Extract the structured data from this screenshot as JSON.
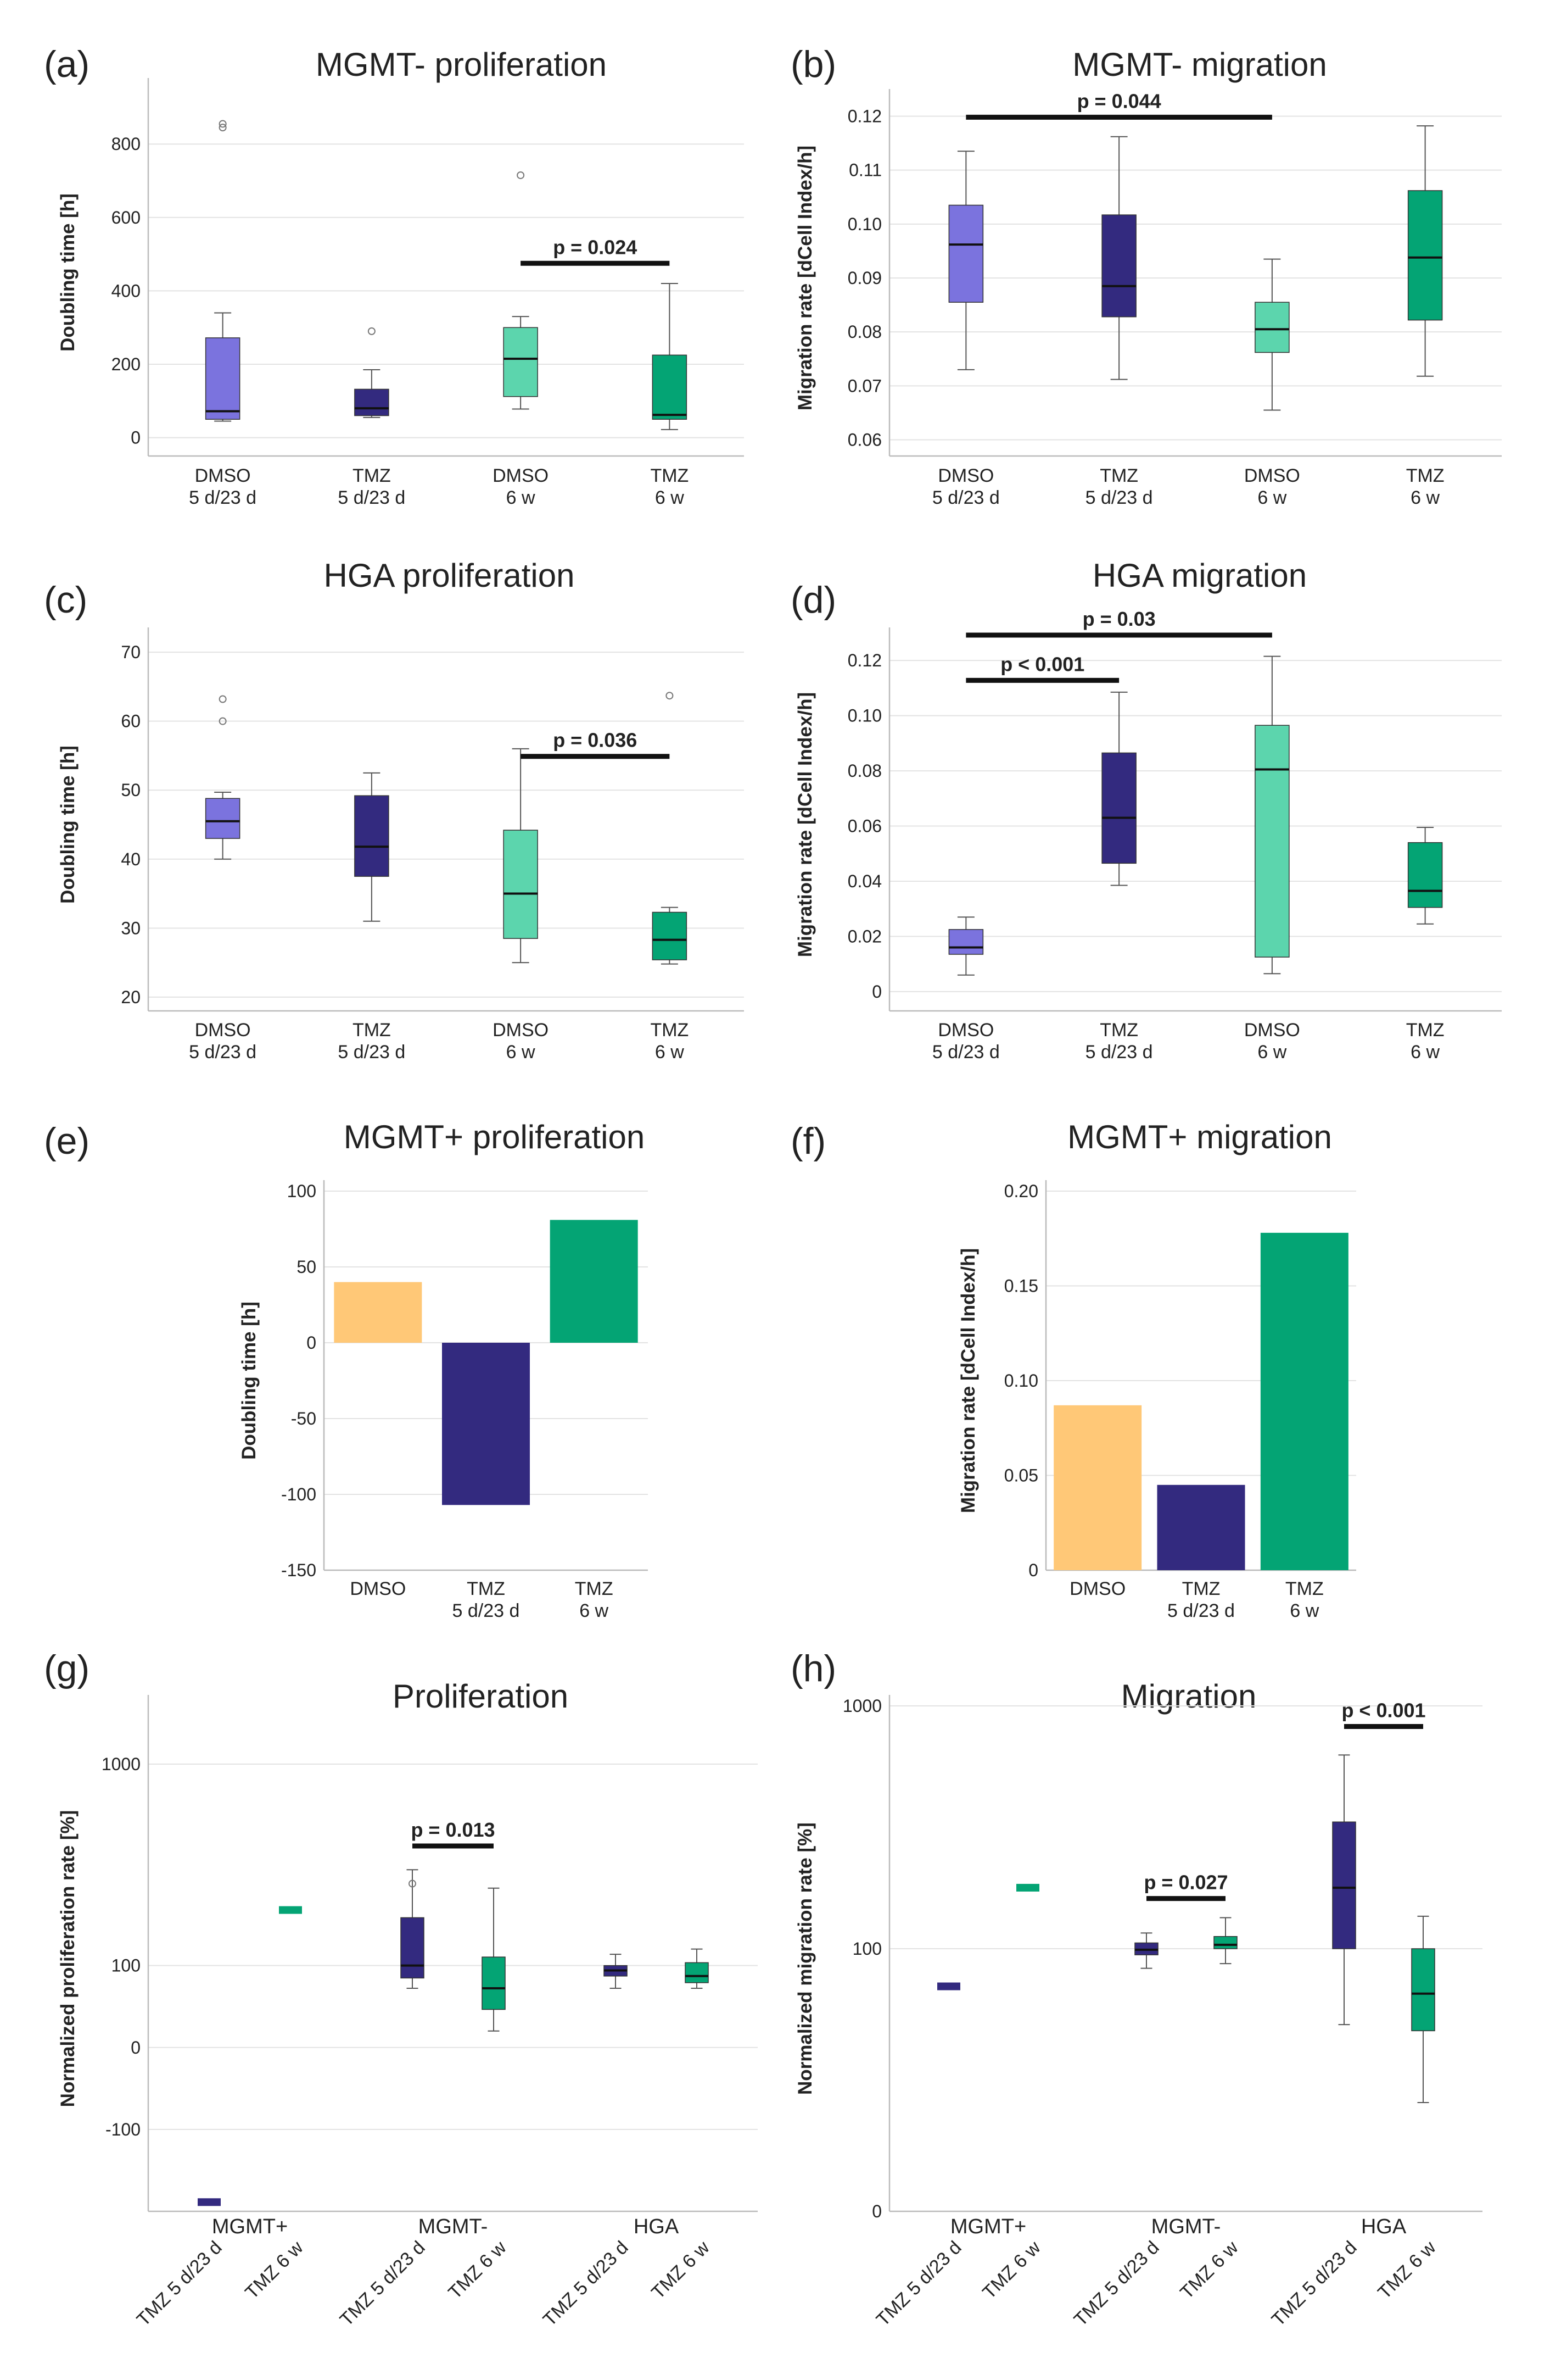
{
  "colors": {
    "dmso_short": "#7b73de",
    "tmz_short": "#332a7f",
    "dmso_long": "#5cd5ad",
    "tmz_long": "#04a474",
    "dmso_plus": "#ffc877",
    "axis": "#bbbbbb",
    "grid": "#e3e3e3",
    "whisker": "#555555"
  },
  "chart_data": [
    {
      "panel": "(a)",
      "type": "box",
      "title": "MGMT- proliferation",
      "ylabel": "Doubling time [h]",
      "ylim": [
        -50,
        950
      ],
      "yticks": [
        0,
        200,
        400,
        600,
        800
      ],
      "categories": [
        "DMSO\n5 d/23 d",
        "TMZ\n5 d/23 d",
        "DMSO\n6 w",
        "TMZ\n6 w"
      ],
      "colorKeys": [
        "dmso_short",
        "tmz_short",
        "dmso_long",
        "tmz_long"
      ],
      "boxes": [
        {
          "min": 45,
          "q1": 50,
          "median": 72,
          "q3": 272,
          "max": 340,
          "outliers": [
            845,
            855
          ]
        },
        {
          "min": 55,
          "q1": 60,
          "median": 80,
          "q3": 132,
          "max": 185,
          "outliers": [
            290
          ]
        },
        {
          "min": 78,
          "q1": 112,
          "median": 215,
          "q3": 300,
          "max": 330,
          "outliers": [
            715
          ]
        },
        {
          "min": 22,
          "q1": 50,
          "median": 62,
          "q3": 225,
          "max": 420,
          "outliers": []
        }
      ],
      "significance": [
        {
          "from": 2,
          "to": 3,
          "y": 475,
          "label": "p = 0.024"
        }
      ]
    },
    {
      "panel": "(b)",
      "type": "box",
      "title": "MGMT- migration",
      "ylabel": "Migration rate [dCell Index/h]",
      "ylim": [
        0.057,
        0.123
      ],
      "yticks": [
        0.06,
        0.07,
        0.08,
        0.09,
        0.1,
        0.11,
        0.12
      ],
      "categories": [
        "DMSO\n5 d/23 d",
        "TMZ\n5 d/23 d",
        "DMSO\n6 w",
        "TMZ\n6 w"
      ],
      "colorKeys": [
        "dmso_short",
        "tmz_short",
        "dmso_long",
        "tmz_long"
      ],
      "boxes": [
        {
          "min": 0.073,
          "q1": 0.0855,
          "median": 0.0962,
          "q3": 0.1035,
          "max": 0.1135,
          "outliers": []
        },
        {
          "min": 0.0712,
          "q1": 0.0828,
          "median": 0.0885,
          "q3": 0.1017,
          "max": 0.1162,
          "outliers": []
        },
        {
          "min": 0.0655,
          "q1": 0.0762,
          "median": 0.0805,
          "q3": 0.0855,
          "max": 0.0935,
          "outliers": []
        },
        {
          "min": 0.0718,
          "q1": 0.0822,
          "median": 0.0938,
          "q3": 0.1062,
          "max": 0.1182,
          "outliers": []
        }
      ],
      "significance": [
        {
          "from": 0,
          "to": 2,
          "y": 0.1198,
          "label": "p = 0.044"
        }
      ]
    },
    {
      "panel": "(c)",
      "type": "box",
      "title": "HGA proliferation",
      "ylabel": "Doubling time [h]",
      "ylim": [
        18,
        72
      ],
      "yticks": [
        20,
        30,
        40,
        50,
        60,
        70
      ],
      "categories": [
        "DMSO\n5 d/23 d",
        "TMZ\n5 d/23 d",
        "DMSO\n6 w",
        "TMZ\n6 w"
      ],
      "colorKeys": [
        "dmso_short",
        "tmz_short",
        "dmso_long",
        "tmz_long"
      ],
      "boxes": [
        {
          "min": 40,
          "q1": 43,
          "median": 45.5,
          "q3": 48.8,
          "max": 49.7,
          "outliers": [
            60,
            63.2
          ]
        },
        {
          "min": 31,
          "q1": 37.5,
          "median": 41.8,
          "q3": 49.2,
          "max": 52.5,
          "outliers": []
        },
        {
          "min": 25,
          "q1": 28.5,
          "median": 35,
          "q3": 44.2,
          "max": 56,
          "outliers": []
        },
        {
          "min": 24.8,
          "q1": 25.4,
          "median": 28.3,
          "q3": 32.3,
          "max": 33,
          "outliers": [
            63.7
          ]
        }
      ],
      "significance": [
        {
          "from": 2,
          "to": 3,
          "y": 54.9,
          "label": "p = 0.036"
        }
      ]
    },
    {
      "panel": "(d)",
      "type": "box",
      "title": "HGA migration",
      "ylabel": "Migration rate [dCell Index/h]",
      "ylim": [
        -0.007,
        0.128
      ],
      "yticks": [
        0,
        0.02,
        0.04,
        0.06,
        0.08,
        0.1,
        0.12
      ],
      "categories": [
        "DMSO\n5 d/23 d",
        "TMZ\n5 d/23 d",
        "DMSO\n6 w",
        "TMZ\n6 w"
      ],
      "colorKeys": [
        "dmso_short",
        "tmz_short",
        "dmso_long",
        "tmz_long"
      ],
      "boxes": [
        {
          "min": 0.006,
          "q1": 0.0135,
          "median": 0.016,
          "q3": 0.0225,
          "max": 0.027,
          "outliers": []
        },
        {
          "min": 0.0385,
          "q1": 0.0465,
          "median": 0.063,
          "q3": 0.0865,
          "max": 0.1085,
          "outliers": []
        },
        {
          "min": 0.0065,
          "q1": 0.0125,
          "median": 0.0805,
          "q3": 0.0965,
          "max": 0.1215,
          "outliers": []
        },
        {
          "min": 0.0245,
          "q1": 0.0305,
          "median": 0.0365,
          "q3": 0.054,
          "max": 0.0595,
          "outliers": []
        }
      ],
      "significance": [
        {
          "from": 0,
          "to": 1,
          "y": 0.1128,
          "label": "p < 0.001"
        },
        {
          "from": 0,
          "to": 2,
          "y": 0.1292,
          "label": "p = 0.03"
        }
      ]
    },
    {
      "panel": "(e)",
      "type": "bar",
      "title": "MGMT+ proliferation",
      "ylabel": "Doubling time [h]",
      "ylim": [
        -150,
        100
      ],
      "yticks": [
        -150,
        -100,
        -50,
        0,
        50,
        100
      ],
      "categories": [
        "DMSO",
        "TMZ\n5 d/23 d",
        "TMZ\n6 w"
      ],
      "values": [
        40,
        -107,
        81
      ],
      "colorKeys": [
        "dmso_plus",
        "tmz_short",
        "tmz_long"
      ]
    },
    {
      "panel": "(f)",
      "type": "bar",
      "title": "MGMT+ migration",
      "ylabel": "Migration rate [dCell Index/h]",
      "ylim": [
        0,
        0.2
      ],
      "yticks": [
        0,
        0.05,
        0.1,
        0.15,
        0.2
      ],
      "categories": [
        "DMSO",
        "TMZ\n5 d/23 d",
        "TMZ\n6 w"
      ],
      "values": [
        0.087,
        0.045,
        0.178
      ],
      "colorKeys": [
        "dmso_plus",
        "tmz_short",
        "tmz_long"
      ]
    },
    {
      "panel": "(g)",
      "type": "box",
      "title": "Proliferation",
      "ylabel": "Normalized proliferation rate [%]",
      "scale": "symlog",
      "ylim": [
        -300,
        1700
      ],
      "yticks": [
        -100,
        0,
        100,
        1000
      ],
      "groups": [
        "MGMT+",
        "MGMT-",
        "HGA"
      ],
      "categories": [
        "TMZ 5 d/23 d",
        "TMZ 6 w",
        "TMZ 5 d/23 d",
        "TMZ 6 w",
        "TMZ 5 d/23 d",
        "TMZ 6 w"
      ],
      "colorKeys": [
        "tmz_short",
        "tmz_long",
        "tmz_short",
        "tmz_long",
        "tmz_short",
        "tmz_long"
      ],
      "boxes": [
        {
          "min": -270,
          "q1": -270,
          "median": -270,
          "q3": -270,
          "max": -270,
          "outliers": []
        },
        {
          "min": 220,
          "q1": 220,
          "median": 220,
          "q3": 220,
          "max": 220,
          "outliers": []
        },
        {
          "min": 65,
          "q1": 80,
          "median": 100,
          "q3": 200,
          "max": 350,
          "outliers": [
            300
          ]
        },
        {
          "min": 15,
          "q1": 38,
          "median": 65,
          "q3": 115,
          "max": 285,
          "outliers": []
        },
        {
          "min": 65,
          "q1": 83,
          "median": 92,
          "q3": 100,
          "max": 120,
          "outliers": []
        },
        {
          "min": 65,
          "q1": 73,
          "median": 83,
          "q3": 105,
          "max": 130,
          "outliers": []
        }
      ],
      "significance": [
        {
          "from": 2,
          "to": 3,
          "y": 450,
          "label": "p = 0.013"
        }
      ]
    },
    {
      "panel": "(h)",
      "type": "box",
      "title": "Migration",
      "ylabel": "Normalized migration rate [%]",
      "scale": "log",
      "ylim": [
        0,
        1000
      ],
      "yticks": [
        0,
        100,
        1000
      ],
      "groups": [
        "MGMT+",
        "MGMT-",
        "HGA"
      ],
      "categories": [
        "TMZ 5 d/23 d",
        "TMZ 6 w",
        "TMZ 5 d/23 d",
        "TMZ 6 w",
        "TMZ 5 d/23 d",
        "TMZ 6 w"
      ],
      "colorKeys": [
        "tmz_short",
        "tmz_long",
        "tmz_short",
        "tmz_long",
        "tmz_short",
        "tmz_long"
      ],
      "boxes": [
        {
          "min": 68,
          "q1": 68,
          "median": 68,
          "q3": 68,
          "max": 68,
          "outliers": []
        },
        {
          "min": 182,
          "q1": 182,
          "median": 182,
          "q3": 182,
          "max": 182,
          "outliers": []
        },
        {
          "min": 82,
          "q1": 94,
          "median": 99,
          "q3": 106,
          "max": 117,
          "outliers": []
        },
        {
          "min": 86,
          "q1": 100,
          "median": 104,
          "q3": 113,
          "max": 136,
          "outliers": []
        },
        {
          "min": 45,
          "q1": 100,
          "median": 182,
          "q3": 340,
          "max": 635,
          "outliers": []
        },
        {
          "min": 17,
          "q1": 42,
          "median": 63,
          "q3": 100,
          "max": 138,
          "outliers": []
        }
      ],
      "significance": [
        {
          "from": 2,
          "to": 3,
          "y": 164,
          "label": "p = 0.027"
        },
        {
          "from": 4,
          "to": 5,
          "y": 827,
          "label": "p < 0.001"
        }
      ]
    }
  ]
}
